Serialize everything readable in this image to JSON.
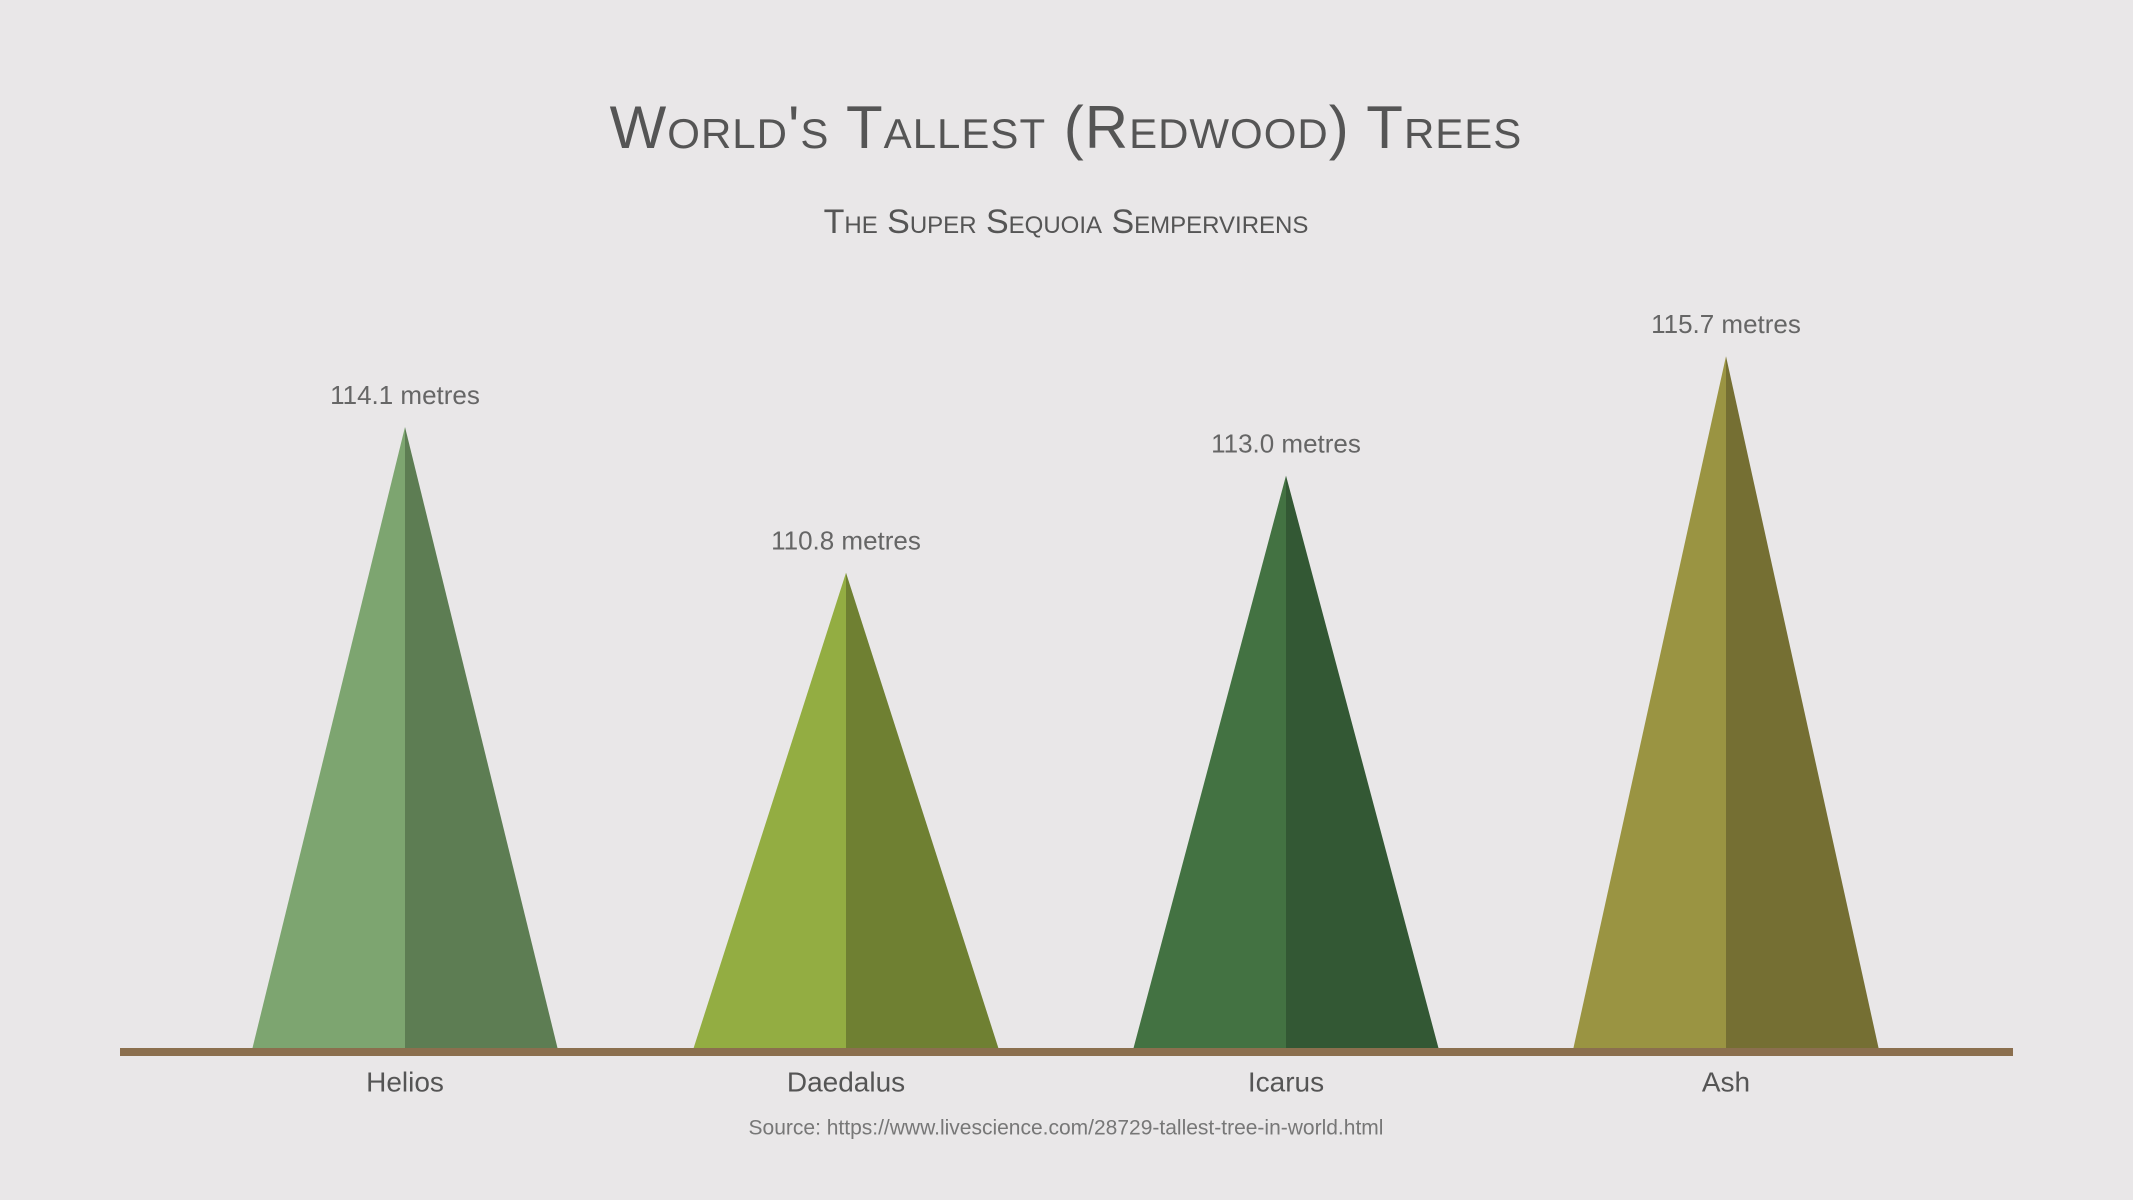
{
  "chart_data": {
    "type": "tree-bar",
    "title": "World's Tallest (Redwood) Trees",
    "subtitle": "The Super Sequoia Sempervirens",
    "categories": [
      "Helios",
      "Daedalus",
      "Icarus",
      "Ash"
    ],
    "values": [
      114.1,
      110.8,
      113.0,
      115.7
    ],
    "value_labels": [
      "114.1 metres",
      "110.8 metres",
      "113.0 metres",
      "115.7 metres"
    ],
    "colors": [
      {
        "light": "#7da570",
        "dark": "#5d7d53"
      },
      {
        "light": "#93ad42",
        "dark": "#6f8032"
      },
      {
        "light": "#437242",
        "dark": "#335834"
      },
      {
        "light": "#9a9442",
        "dark": "#756f33"
      }
    ],
    "ground_color": "#8b6f4e",
    "ylim": [
      100,
      116
    ],
    "source": "Source: https://www.livescience.com/28729-tallest-tree-in-world.html"
  }
}
